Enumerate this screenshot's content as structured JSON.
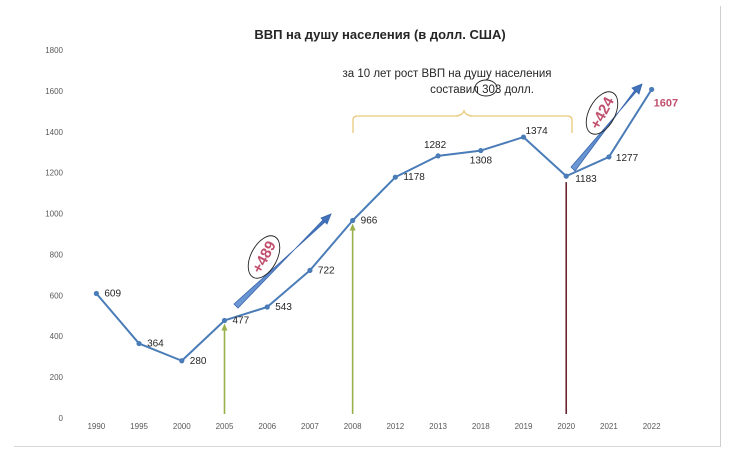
{
  "chart_data": {
    "type": "line",
    "title": "ВВП на душу населения (в долл. США)",
    "xlabel": "",
    "ylabel": "",
    "ylim": [
      0,
      1800
    ],
    "yticks": [
      0,
      200,
      400,
      600,
      800,
      1000,
      1200,
      1400,
      1600,
      1800
    ],
    "grid": false,
    "categories": [
      "1990",
      "1995",
      "2000",
      "2005",
      "2006",
      "2007",
      "2008",
      "2012",
      "2013",
      "2018",
      "2019",
      "2020",
      "2021",
      "2022"
    ],
    "series": [
      {
        "values": [
          609,
          364,
          280,
          477,
          543,
          722,
          966,
          1178,
          1282,
          1308,
          1374,
          1183,
          1277,
          1607
        ],
        "color": "#4a7cb8"
      }
    ],
    "annotations": {
      "bracket_note_line1": "за 10 лет рост ВВП на душу населения",
      "bracket_note_pre": "составил ",
      "bracket_note_value": "303",
      "bracket_note_post": " долл.",
      "growth_1": "+489",
      "growth_2": "+424"
    },
    "colors": {
      "line": "#4a7cb8",
      "arrow": "#4f7fc4",
      "growth_text": "#c0506d",
      "green_markers": "#9ab04a",
      "dark_marker": "#6b2530",
      "bracket": "#e8c97a"
    }
  }
}
